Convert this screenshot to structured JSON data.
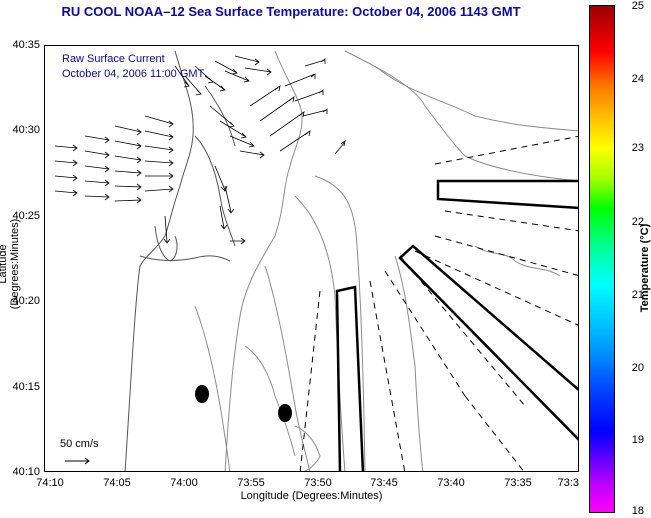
{
  "title": "RU COOL  NOAA–12  Sea Surface Temperature:  October 04, 2006 1143 GMT",
  "map": {
    "xlabel": "Longitude (Degrees:Minutes)",
    "ylabel": "Latitude (Degrees:Minutes)",
    "x_ticks": [
      "74:10",
      "74:05",
      "74:00",
      "73:55",
      "73:50",
      "73:45",
      "73:40",
      "73:35",
      "73:3"
    ],
    "y_ticks": [
      "40:35",
      "40:30",
      "40:25",
      "40:20",
      "40:15",
      "40:10"
    ],
    "current_title": "Raw Surface Current",
    "current_date": "October 04, 2006 11:00 GMT",
    "scale_label": "50 cm/s",
    "colors": {
      "title": "#0b0b9c",
      "contour": "#8c8c8c",
      "land": "#ffffff"
    }
  },
  "colorbar": {
    "label": "Temperature (°C)",
    "ticks": [
      "25",
      "24",
      "23",
      "22",
      "21",
      "20",
      "19",
      "18"
    ],
    "min": 18,
    "max": 25
  }
}
